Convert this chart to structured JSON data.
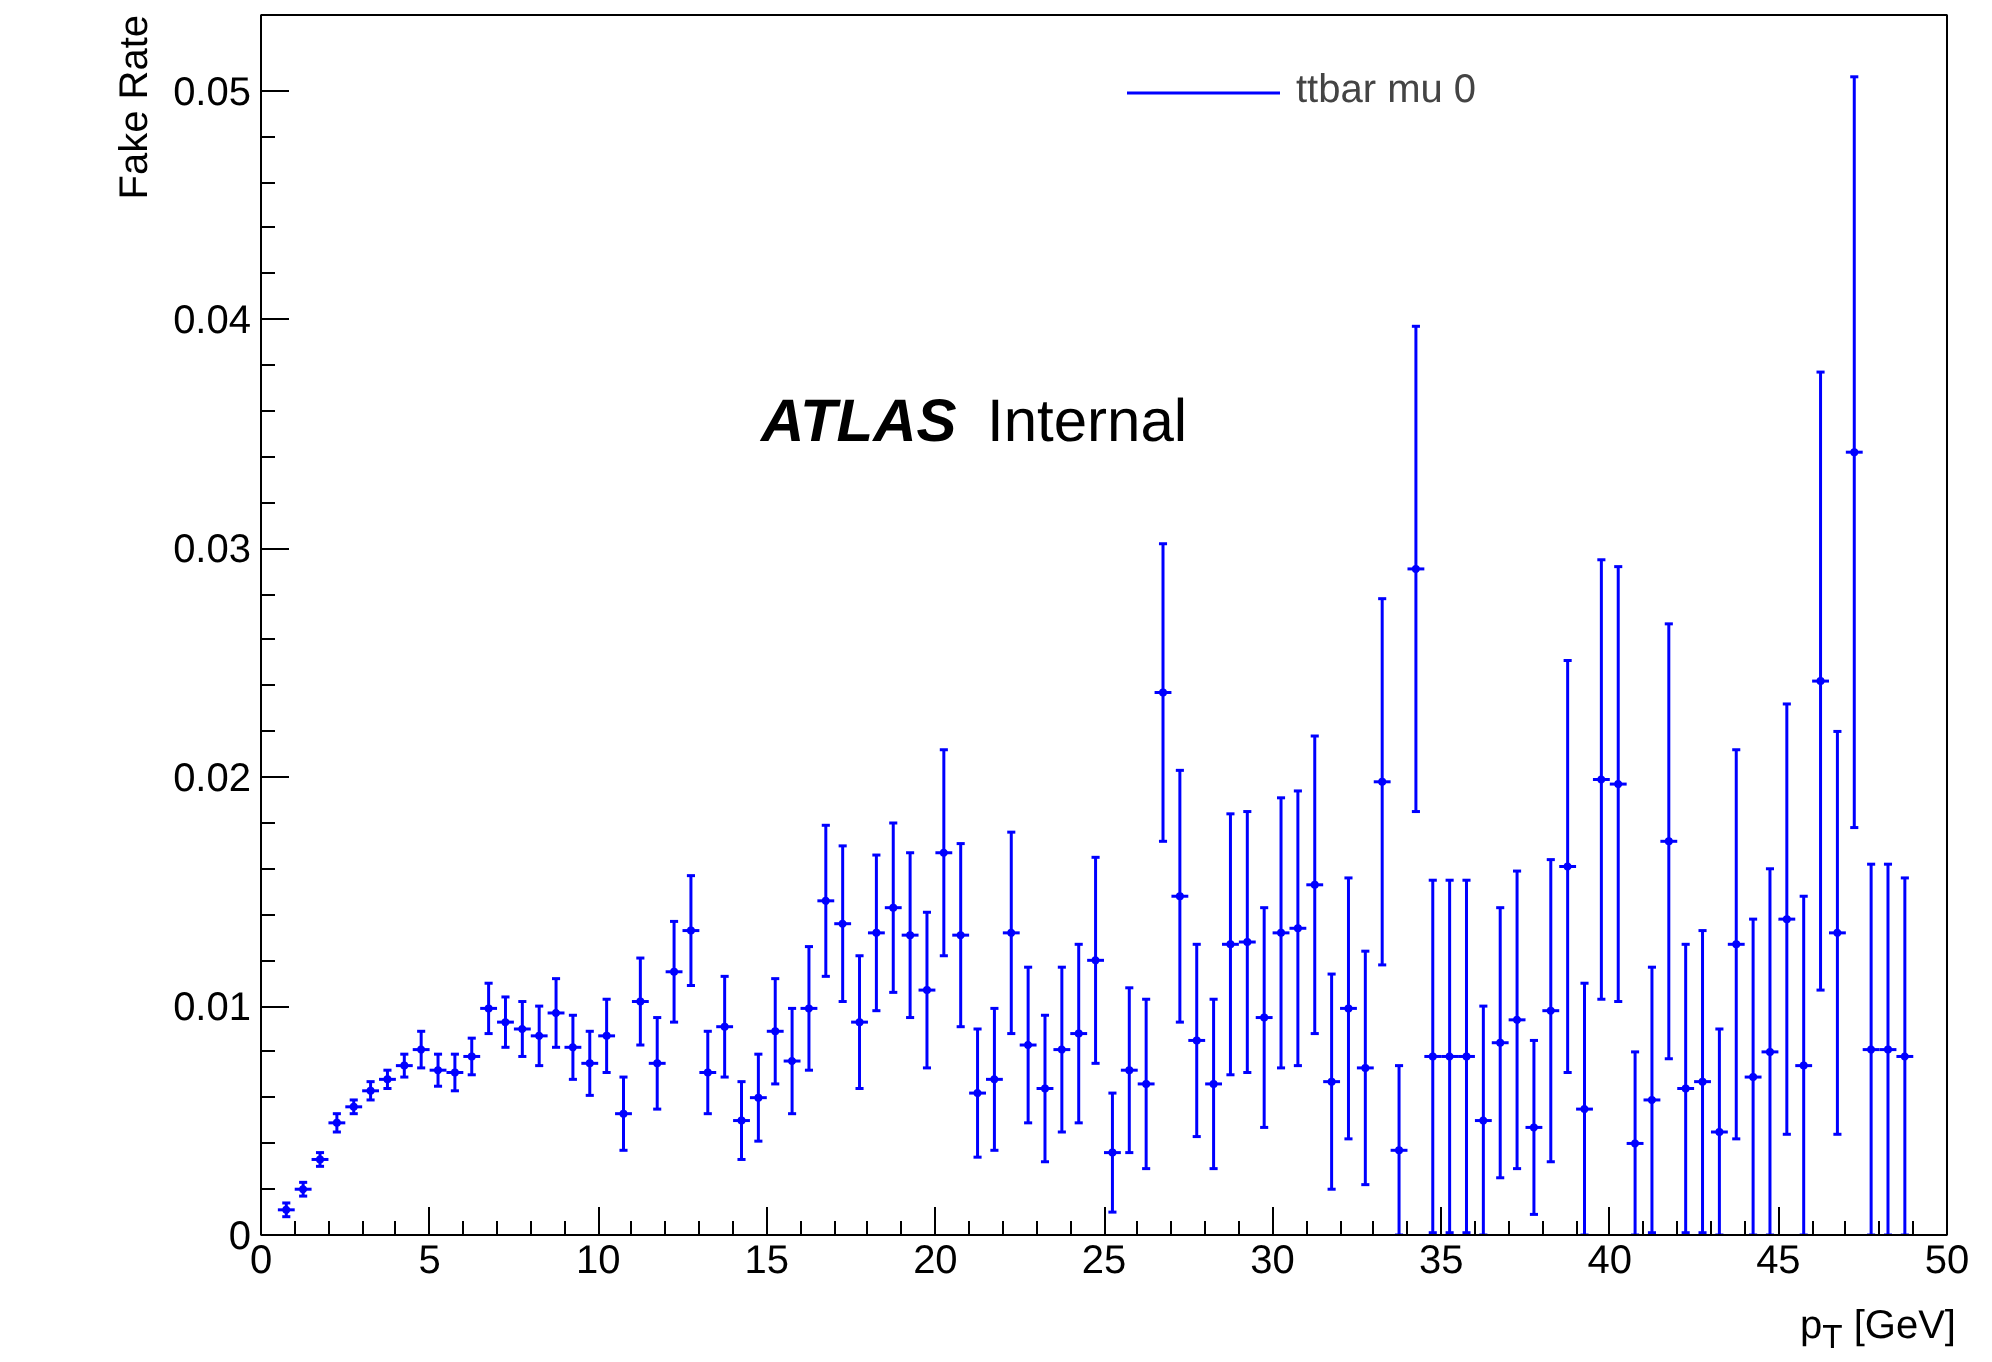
{
  "chart_data": {
    "type": "scatter",
    "xlabel": "p$_{T}$ [GeV]",
    "ylabel": "Fake Rate",
    "annotations": [
      "ATLAS Internal"
    ],
    "series": [
      {
        "name": "ttbar mu 0",
        "color": "#0000ff",
        "x": [
          0.75,
          1.25,
          1.75,
          2.25,
          2.75,
          3.25,
          3.75,
          4.25,
          4.75,
          5.25,
          5.75,
          6.25,
          6.75,
          7.25,
          7.75,
          8.25,
          8.75,
          9.25,
          9.75,
          10.25,
          10.75,
          11.25,
          11.75,
          12.25,
          12.75,
          13.25,
          13.75,
          14.25,
          14.75,
          15.25,
          15.75,
          16.25,
          16.75,
          17.25,
          17.75,
          18.25,
          18.75,
          19.25,
          19.75,
          20.25,
          20.75,
          21.25,
          21.75,
          22.25,
          22.75,
          23.25,
          23.75,
          24.25,
          24.75,
          25.25,
          25.75,
          26.25,
          26.75,
          27.25,
          27.75,
          28.25,
          28.75,
          29.25,
          29.75,
          30.25,
          30.75,
          31.25,
          31.75,
          32.25,
          32.75,
          33.25,
          33.75,
          34.25,
          34.75,
          35.25,
          35.75,
          36.25,
          36.75,
          37.25,
          37.75,
          38.25,
          38.75,
          39.25,
          39.75,
          40.25,
          40.75,
          41.25,
          41.75,
          42.25,
          42.75,
          43.25,
          43.75,
          44.25,
          44.75,
          45.25,
          45.75,
          46.25,
          46.75,
          47.25,
          47.75,
          48.25,
          48.75
        ],
        "values": [
          0.0011,
          0.002,
          0.0033,
          0.0049,
          0.0056,
          0.0063,
          0.0068,
          0.0074,
          0.0081,
          0.0072,
          0.0071,
          0.0078,
          0.0099,
          0.0093,
          0.009,
          0.0087,
          0.0097,
          0.0082,
          0.0075,
          0.0087,
          0.0053,
          0.0102,
          0.0075,
          0.0115,
          0.0133,
          0.0071,
          0.0091,
          0.005,
          0.006,
          0.0089,
          0.0076,
          0.0099,
          0.0146,
          0.0136,
          0.0093,
          0.0132,
          0.0143,
          0.0131,
          0.0107,
          0.0167,
          0.0131,
          0.0062,
          0.0068,
          0.0132,
          0.0083,
          0.0064,
          0.0081,
          0.0088,
          0.012,
          0.0036,
          0.0072,
          0.0066,
          0.0237,
          0.0148,
          0.0085,
          0.0066,
          0.0127,
          0.0128,
          0.0095,
          0.0132,
          0.0134,
          0.0153,
          0.0067,
          0.0099,
          0.0073,
          0.0198,
          0.0037,
          0.0291,
          0.0078,
          0.0078,
          0.0078,
          0.005,
          0.0084,
          0.0094,
          0.0047,
          0.0098,
          0.0161,
          0.0055,
          0.0199,
          0.0197,
          0.004,
          0.0059,
          0.0172,
          0.0064,
          0.0067,
          0.0045,
          0.0127,
          0.0069,
          0.008,
          0.0138,
          0.0074,
          0.0242,
          0.0132,
          0.0342,
          0.0081,
          0.0081,
          0.0078
        ],
        "errors": [
          0.0003,
          0.0003,
          0.0003,
          0.0004,
          0.0003,
          0.0004,
          0.0004,
          0.0005,
          0.0008,
          0.0007,
          0.0008,
          0.0008,
          0.0011,
          0.0011,
          0.0012,
          0.0013,
          0.0015,
          0.0014,
          0.0014,
          0.0016,
          0.0016,
          0.0019,
          0.002,
          0.0022,
          0.0024,
          0.0018,
          0.0022,
          0.0017,
          0.0019,
          0.0023,
          0.0023,
          0.0027,
          0.0033,
          0.0034,
          0.0029,
          0.0034,
          0.0037,
          0.0036,
          0.0034,
          0.0045,
          0.004,
          0.0028,
          0.0031,
          0.0044,
          0.0034,
          0.0032,
          0.0036,
          0.0039,
          0.0045,
          0.0026,
          0.0036,
          0.0037,
          0.0065,
          0.0055,
          0.0042,
          0.0037,
          0.0057,
          0.0057,
          0.0048,
          0.0059,
          0.006,
          0.0065,
          0.0047,
          0.0057,
          0.0051,
          0.008,
          0.0037,
          0.0106,
          0.0077,
          0.0077,
          0.0077,
          0.005,
          0.0059,
          0.0065,
          0.0038,
          0.0066,
          0.009,
          0.0055,
          0.0096,
          0.0095,
          0.004,
          0.0058,
          0.0095,
          0.0063,
          0.0066,
          0.0045,
          0.0085,
          0.0069,
          0.008,
          0.0094,
          0.0074,
          0.0135,
          0.0088,
          0.0164,
          0.0081,
          0.0081,
          0.0078
        ],
        "xerrors": [
          0.25,
          0.25,
          0.25,
          0.25,
          0.25,
          0.25,
          0.25,
          0.25,
          0.25,
          0.25,
          0.25,
          0.25,
          0.25,
          0.25,
          0.25,
          0.25,
          0.25,
          0.25,
          0.25,
          0.25,
          0.25,
          0.25,
          0.25,
          0.25,
          0.25,
          0.25,
          0.25,
          0.25,
          0.25,
          0.25,
          0.25,
          0.25,
          0.25,
          0.25,
          0.25,
          0.25,
          0.25,
          0.25,
          0.25,
          0.25,
          0.25,
          0.25,
          0.25,
          0.25,
          0.25,
          0.25,
          0.25,
          0.25,
          0.25,
          0.25,
          0.25,
          0.25,
          0.25,
          0.25,
          0.25,
          0.25,
          0.25,
          0.25,
          0.25,
          0.25,
          0.25,
          0.25,
          0.25,
          0.25,
          0.25,
          0.25,
          0.25,
          0.25,
          0.25,
          0.25,
          0.25,
          0.25,
          0.25,
          0.25,
          0.25,
          0.25,
          0.25,
          0.25,
          0.25,
          0.25,
          0.25,
          0.25,
          0.25,
          0.25,
          0.25,
          0.25,
          0.25,
          0.25,
          0.25,
          0.25,
          0.25,
          0.25,
          0.25,
          0.25,
          0.25,
          0.25,
          0.25
        ]
      }
    ],
    "xlim": [
      0,
      50
    ],
    "ylim": [
      0,
      0.0533
    ],
    "xticks": [
      0,
      5,
      10,
      15,
      20,
      25,
      30,
      35,
      40,
      45,
      50
    ],
    "yticks": [
      0,
      0.01,
      0.02,
      0.03,
      0.04,
      0.05
    ],
    "marker": "circle",
    "legend": "top right"
  }
}
